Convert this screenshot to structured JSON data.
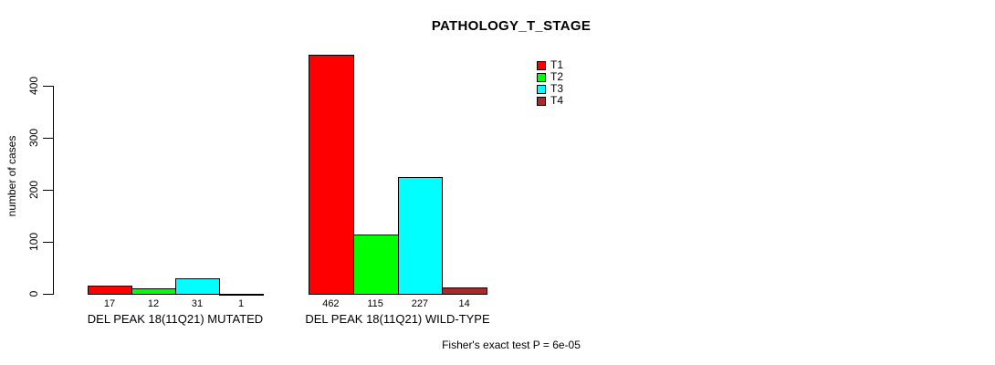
{
  "title": "PATHOLOGY_T_STAGE",
  "footer": "Fisher's exact test P = 6e-05",
  "chart_data": {
    "type": "bar",
    "title": "PATHOLOGY_T_STAGE",
    "xlabel": "",
    "ylabel": "number of cases",
    "ylim": [
      0,
      400
    ],
    "yticks": [
      0,
      100,
      200,
      300,
      400
    ],
    "grid": false,
    "legend_position": "top-right",
    "categories": [
      "DEL PEAK 18(11Q21) MUTATED",
      "DEL PEAK 18(11Q21) WILD-TYPE"
    ],
    "series": [
      {
        "name": "T1",
        "color": "#FF0000",
        "values": [
          17,
          462
        ]
      },
      {
        "name": "T2",
        "color": "#00FF00",
        "values": [
          12,
          115
        ]
      },
      {
        "name": "T3",
        "color": "#00FFFF",
        "values": [
          31,
          227
        ]
      },
      {
        "name": "T4",
        "color": "#A52A2A",
        "values": [
          1,
          14
        ]
      }
    ],
    "bar_value_labels": true,
    "annotation": "Fisher's exact test P = 6e-05"
  }
}
